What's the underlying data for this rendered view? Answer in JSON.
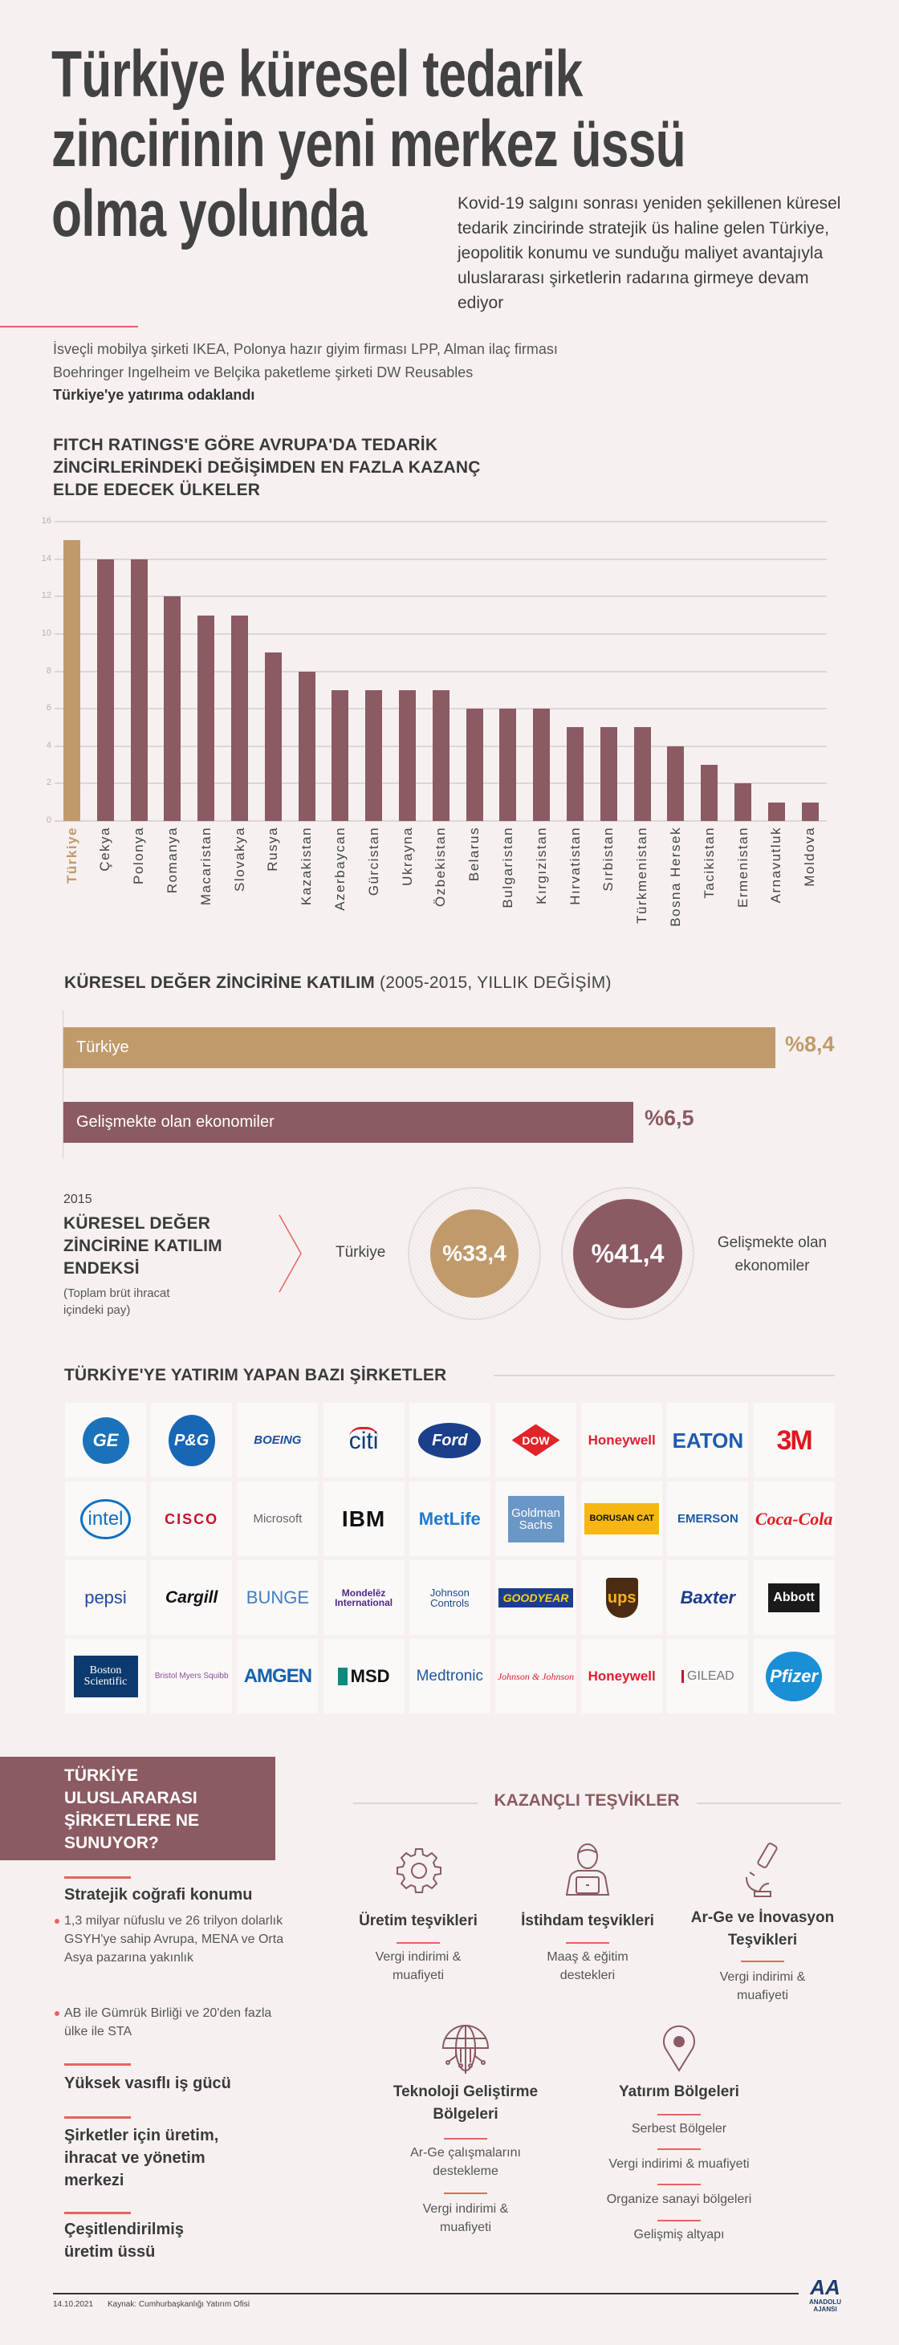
{
  "header": {
    "title_lines": [
      "Türkiye küresel tedarik",
      "zincirinin yeni merkez üssü",
      "olma yolunda"
    ],
    "lead": "Kovid-19 salgını sonrası yeniden şekillenen küresel tedarik zincirinde stratejik üs haline gelen Türkiye, jeopolitik konumu ve sunduğu maliyet avantajıyla uluslararası şirketlerin radarına girmeye devam ediyor",
    "intro": "İsveçli mobilya şirketi IKEA, Polonya hazır giyim firması LPP, Alman ilaç firması Boehringer Ingelheim ve Belçika paketleme şirketi DW Reusables",
    "intro_bold": "Türkiye'ye yatırıma odaklandı"
  },
  "colors": {
    "gold": "#c19a6b",
    "maroon": "#8b5a62",
    "accent_red": "#e8625f",
    "background": "#f6f1f0"
  },
  "chart_data": [
    {
      "type": "bar",
      "title_lines": [
        "FITCH RATINGS'E GÖRE AVRUPA'DA TEDARİK",
        "ZİNCİRLERİNDEKİ DEĞİŞİMDEN EN FAZLA KAZANÇ",
        "ELDE EDECEK ÜLKELER"
      ],
      "categories": [
        "Türkiye",
        "Çekya",
        "Polonya",
        "Romanya",
        "Macaristan",
        "Slovakya",
        "Rusya",
        "Kazakistan",
        "Azerbaycan",
        "Gürcistan",
        "Ukrayna",
        "Özbekistan",
        "Belarus",
        "Bulgaristan",
        "Kırgızistan",
        "Hırvatistan",
        "Sırbistan",
        "Türkmenistan",
        "Bosna Hersek",
        "Tacikistan",
        "Ermenistan",
        "Arnavutluk",
        "Moldova"
      ],
      "values": [
        15,
        14,
        14,
        12,
        11,
        11,
        9,
        8,
        7,
        7,
        7,
        7,
        6,
        6,
        6,
        5,
        5,
        5,
        4,
        3,
        2,
        1,
        1
      ],
      "highlight": "Türkiye",
      "yticks": [
        "0",
        "2",
        "4",
        "6",
        "8",
        "10",
        "12",
        "14",
        "16"
      ],
      "ylim": [
        0,
        16
      ],
      "grid": true
    },
    {
      "type": "bar",
      "orientation": "horizontal",
      "title_bold": "KÜRESEL DEĞER ZİNCİRİNE KATILIM",
      "title_light": "(2005-2015, YILLIK DEĞİŞİM)",
      "categories": [
        "Türkiye",
        "Gelişmekte olan ekonomiler"
      ],
      "values": [
        8.4,
        6.5
      ],
      "value_labels": [
        "%8,4",
        "%6,5"
      ]
    },
    {
      "type": "table",
      "year": "2015",
      "title_lines": [
        "KÜRESEL DEĞER",
        "ZİNCİRİNE KATILIM",
        "ENDEKSİ"
      ],
      "subtitle_lines": [
        "(Toplam brüt ihracat",
        "içindeki pay)"
      ],
      "items": [
        {
          "label": "Türkiye",
          "value": 33.4,
          "value_label": "%33,4"
        },
        {
          "label_lines": [
            "Gelişmekte olan",
            "ekonomiler"
          ],
          "value": 41.4,
          "value_label": "%41,4"
        }
      ]
    }
  ],
  "companies": {
    "title": "TÜRKİYE'YE YATIRIM YAPAN BAZI ŞİRKETLER",
    "logos": [
      "GE",
      "P&G",
      "BOEING",
      "citi",
      "Ford",
      "DOW",
      "Honeywell",
      "EATON",
      "3M",
      "intel",
      "CISCO",
      "Microsoft",
      "IBM",
      "MetLife",
      "Goldman Sachs",
      "BORUSAN CAT",
      "EMERSON",
      "Coca-Cola",
      "pepsi",
      "Cargill",
      "BUNGE",
      "Mondelēz International",
      "Johnson Controls",
      "GOODYEAR",
      "ups",
      "Baxter",
      "Abbott",
      "Boston Scientific",
      "Bristol Myers Squibb",
      "AMGEN",
      "MSD",
      "Medtronic",
      "Johnson & Johnson",
      "Honeywell",
      "GILEAD",
      "Pfizer"
    ]
  },
  "offers": {
    "box_lines": [
      "TÜRKİYE",
      "ULUSLARARASI",
      "ŞİRKETLERE NE",
      "SUNUYOR?"
    ],
    "items": [
      {
        "heading": "Stratejik coğrafi konumu",
        "bullets": [
          "1,3 milyar nüfuslu ve 26 trilyon dolarlık GSYH'ye sahip Avrupa, MENA ve Orta Asya pazarına yakınlık",
          "AB ile Gümrük Birliği ve 20'den fazla ülke ile STA"
        ]
      },
      {
        "heading": "Yüksek vasıflı iş gücü"
      },
      {
        "heading": "Şirketler için üretim, ihracat ve yönetim merkezi"
      },
      {
        "heading": "Çeşitlendirilmiş üretim üssü"
      }
    ]
  },
  "incentives": {
    "title": "KAZANÇLI TEŞVİKLER",
    "items": [
      {
        "icon": "gear-icon",
        "heading": "Üretim teşvikleri",
        "details": [
          "Vergi indirimi & muafiyeti"
        ]
      },
      {
        "icon": "person-laptop-icon",
        "heading": "İstihdam teşvikleri",
        "details": [
          "Maaş & eğitim destekleri"
        ]
      },
      {
        "icon": "microscope-icon",
        "heading": "Ar-Ge ve İnovasyon Teşvikleri",
        "details": [
          "Vergi indirimi & muafiyeti"
        ]
      },
      {
        "icon": "globe-circuit-icon",
        "heading": "Teknoloji Geliştirme Bölgeleri",
        "details": [
          "Ar-Ge çalışmalarını destekleme",
          "Vergi indirimi & muafiyeti"
        ]
      },
      {
        "icon": "map-pin-icon",
        "heading": "Yatırım Bölgeleri",
        "details": [
          "Serbest Bölgeler",
          "Vergi indirimi & muafiyeti",
          "Organize sanayi bölgeleri",
          "Gelişmiş altyapı"
        ]
      }
    ]
  },
  "footer": {
    "date": "14.10.2021",
    "source": "Kaynak: Cumhurbaşkanlığı Yatırım Ofisi",
    "logo_text": "ANADOLU AJANSI",
    "logo_mark": "AA"
  }
}
